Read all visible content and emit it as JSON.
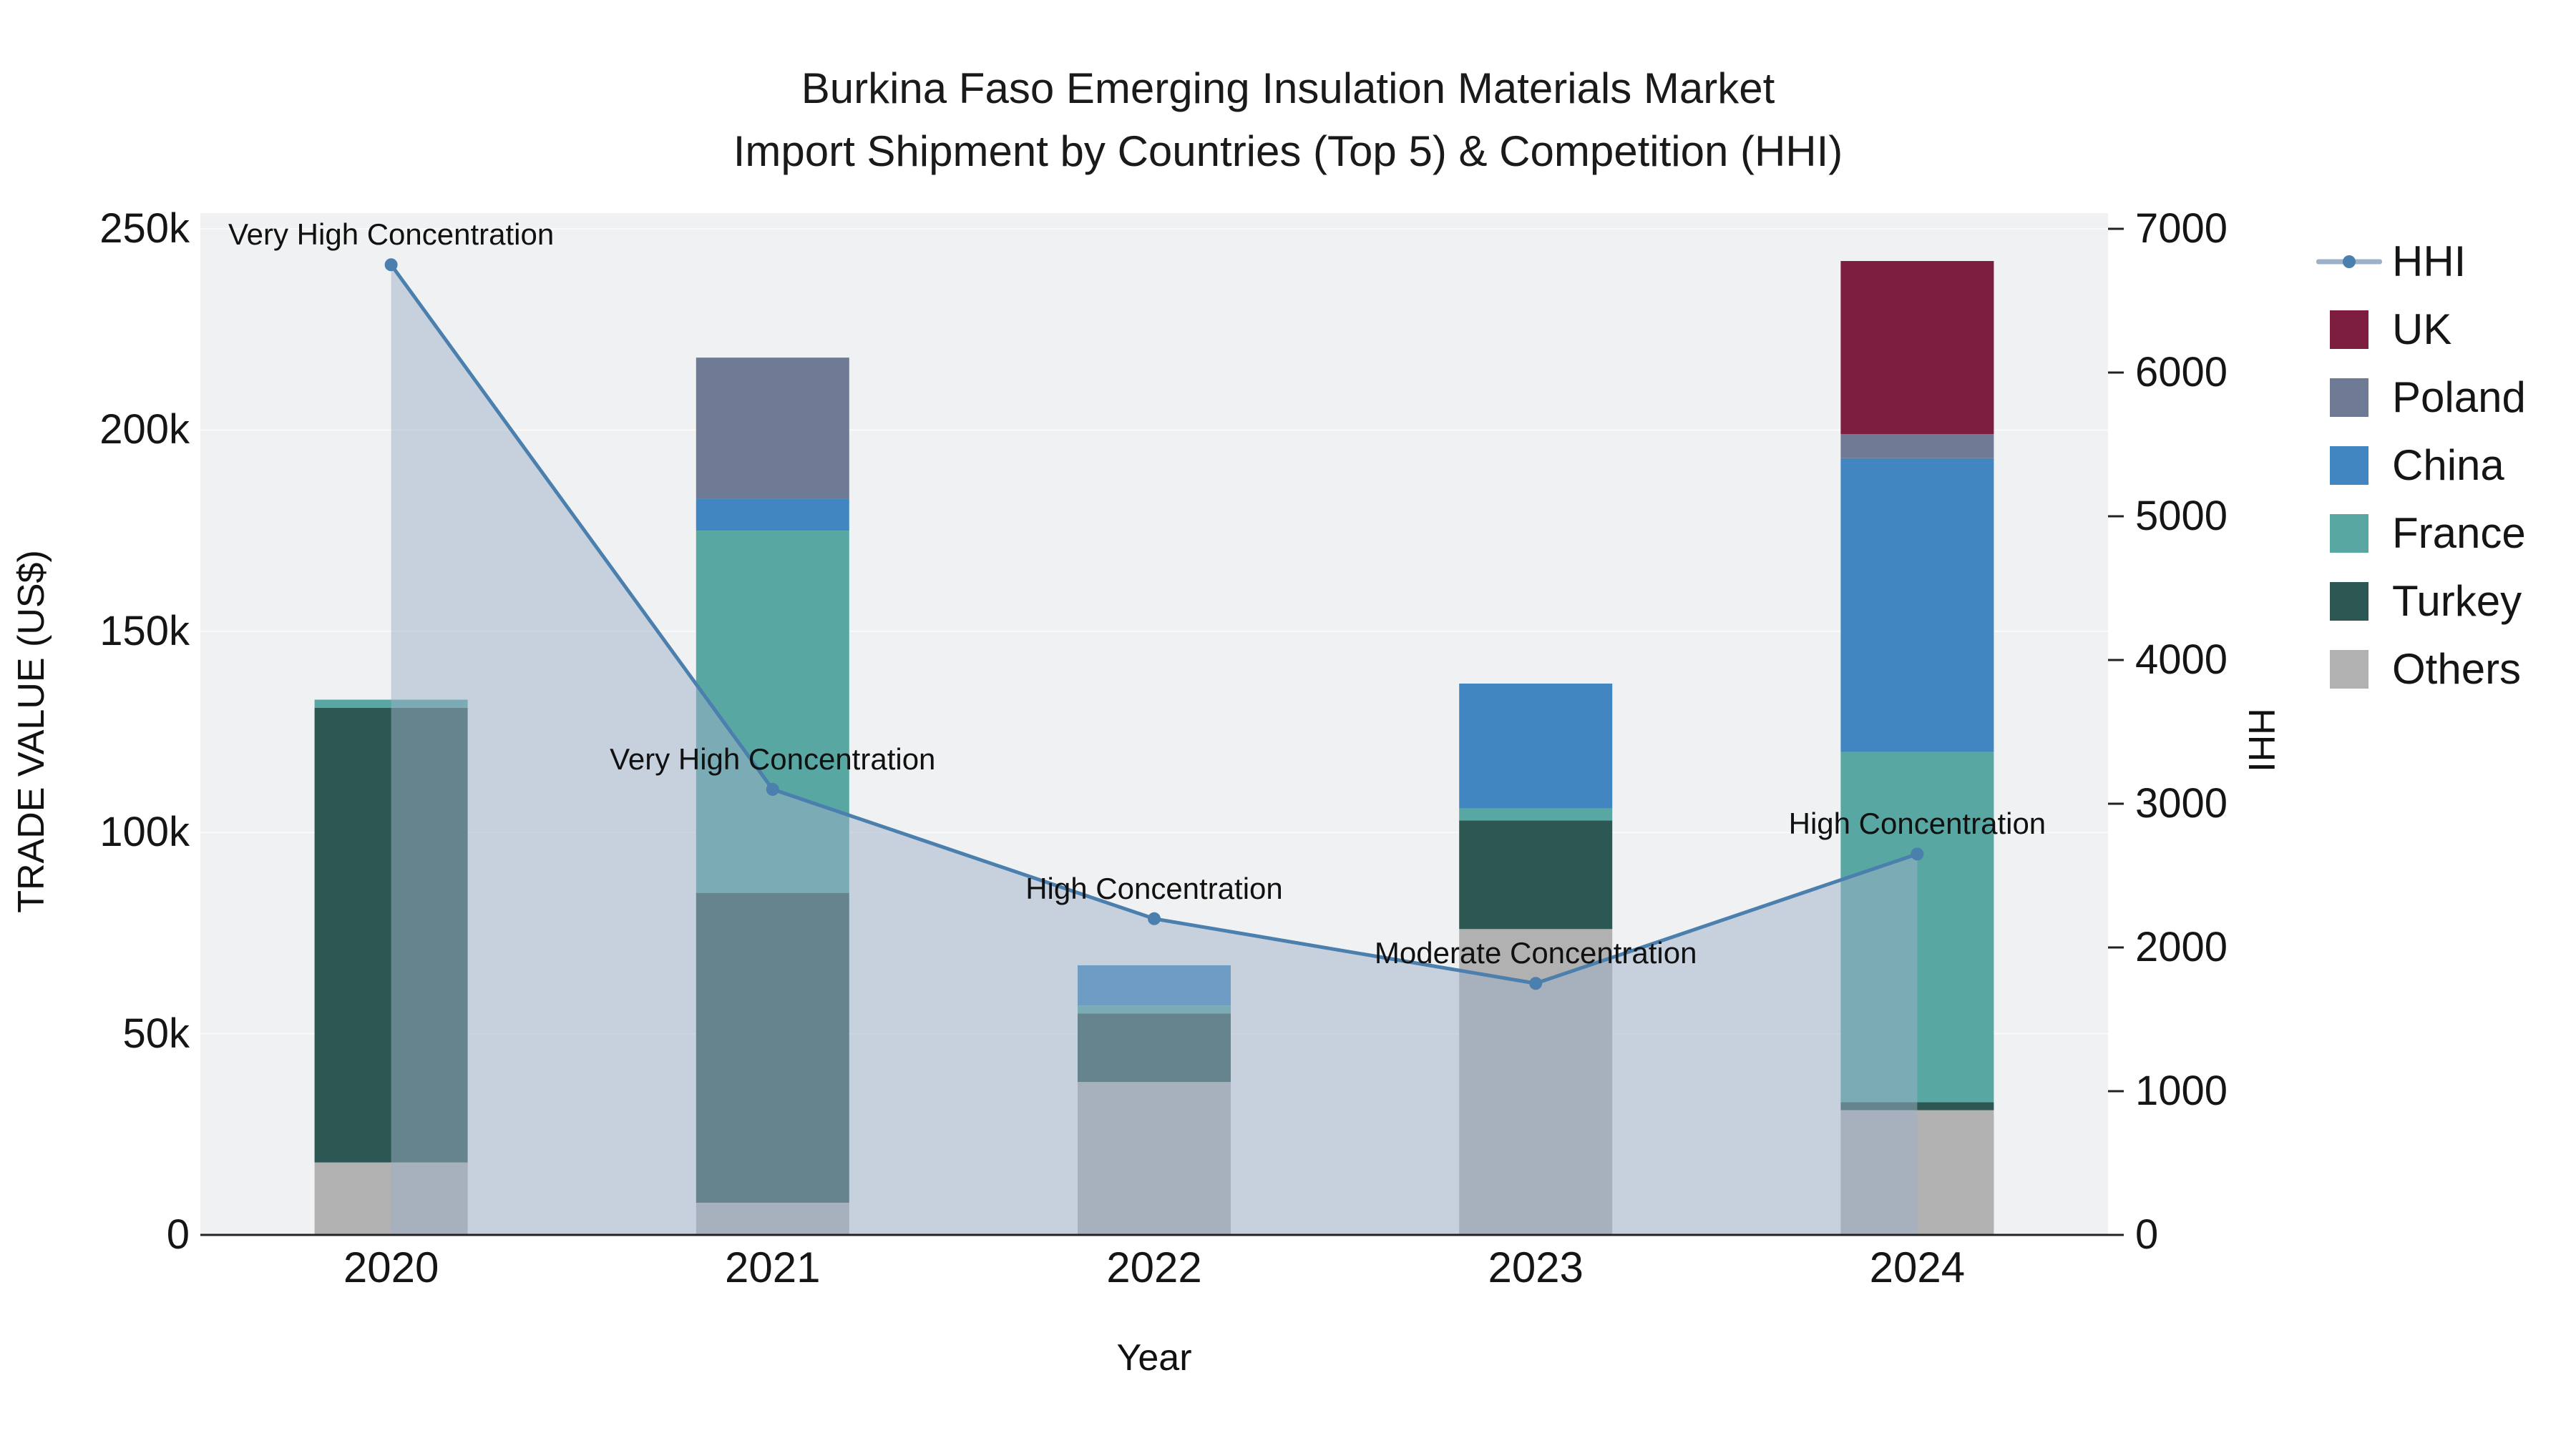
{
  "title_line1": "Burkina Faso Emerging Insulation Materials Market",
  "title_line2": "Import Shipment by Countries (Top 5) & Competition (HHI)",
  "chart_data": {
    "type": "stacked-bar+line",
    "categories": [
      "2020",
      "2021",
      "2022",
      "2023",
      "2024"
    ],
    "x_label": "Year",
    "y_left": {
      "label": "TRADE VALUE (US$)",
      "max": 250000,
      "ticks": [
        {
          "label": "0",
          "value": 0
        },
        {
          "label": "50k",
          "value": 50000
        },
        {
          "label": "100k",
          "value": 100000
        },
        {
          "label": "150k",
          "value": 150000
        },
        {
          "label": "200k",
          "value": 200000
        },
        {
          "label": "250k",
          "value": 250000
        }
      ]
    },
    "y_right": {
      "label": "HHI",
      "max": 7000,
      "ticks": [
        {
          "label": "0",
          "value": 0
        },
        {
          "label": "1000",
          "value": 1000
        },
        {
          "label": "2000",
          "value": 2000
        },
        {
          "label": "3000",
          "value": 3000
        },
        {
          "label": "4000",
          "value": 4000
        },
        {
          "label": "5000",
          "value": 5000
        },
        {
          "label": "6000",
          "value": 6000
        },
        {
          "label": "7000",
          "value": 7000
        }
      ]
    },
    "bar_series": [
      {
        "name": "Others",
        "color": "#b1b1b1",
        "values": [
          18000,
          8000,
          38000,
          76000,
          31000
        ]
      },
      {
        "name": "Turkey",
        "color": "#2c5752",
        "values": [
          113000,
          77000,
          17000,
          27000,
          2000
        ]
      },
      {
        "name": "France",
        "color": "#58a7a2",
        "values": [
          2000,
          90000,
          2000,
          3000,
          87000
        ]
      },
      {
        "name": "China",
        "color": "#4186c0",
        "values": [
          0,
          8000,
          10000,
          31000,
          73000
        ]
      },
      {
        "name": "Poland",
        "color": "#6f7b94",
        "values": [
          0,
          35000,
          0,
          0,
          6000
        ]
      },
      {
        "name": "UK",
        "color": "#7d1d40",
        "values": [
          0,
          0,
          0,
          0,
          43000
        ]
      }
    ],
    "line_series": {
      "name": "HHI",
      "axis": "right",
      "color": "#4a7fae",
      "fill_color": "#9db1c9",
      "fill_opacity": 0.5,
      "values": [
        6750,
        3100,
        2200,
        1750,
        2650
      ]
    },
    "annotations": [
      "Very High Concentration",
      "Very High Concentration",
      "High Concentration",
      "Moderate Concentration",
      "High Concentration"
    ]
  },
  "legend": {
    "items": [
      {
        "label": "HHI",
        "swatch": "line",
        "color": "#4a7fae",
        "line_color": "#9db1c9"
      },
      {
        "label": "UK",
        "swatch": "square",
        "color": "#7d1d40"
      },
      {
        "label": "Poland",
        "swatch": "square",
        "color": "#6f7b94"
      },
      {
        "label": "China",
        "swatch": "square",
        "color": "#4186c0"
      },
      {
        "label": "France",
        "swatch": "square",
        "color": "#58a7a2"
      },
      {
        "label": "Turkey",
        "swatch": "square",
        "color": "#2c5752"
      },
      {
        "label": "Others",
        "swatch": "square",
        "color": "#b1b1b1"
      }
    ]
  }
}
